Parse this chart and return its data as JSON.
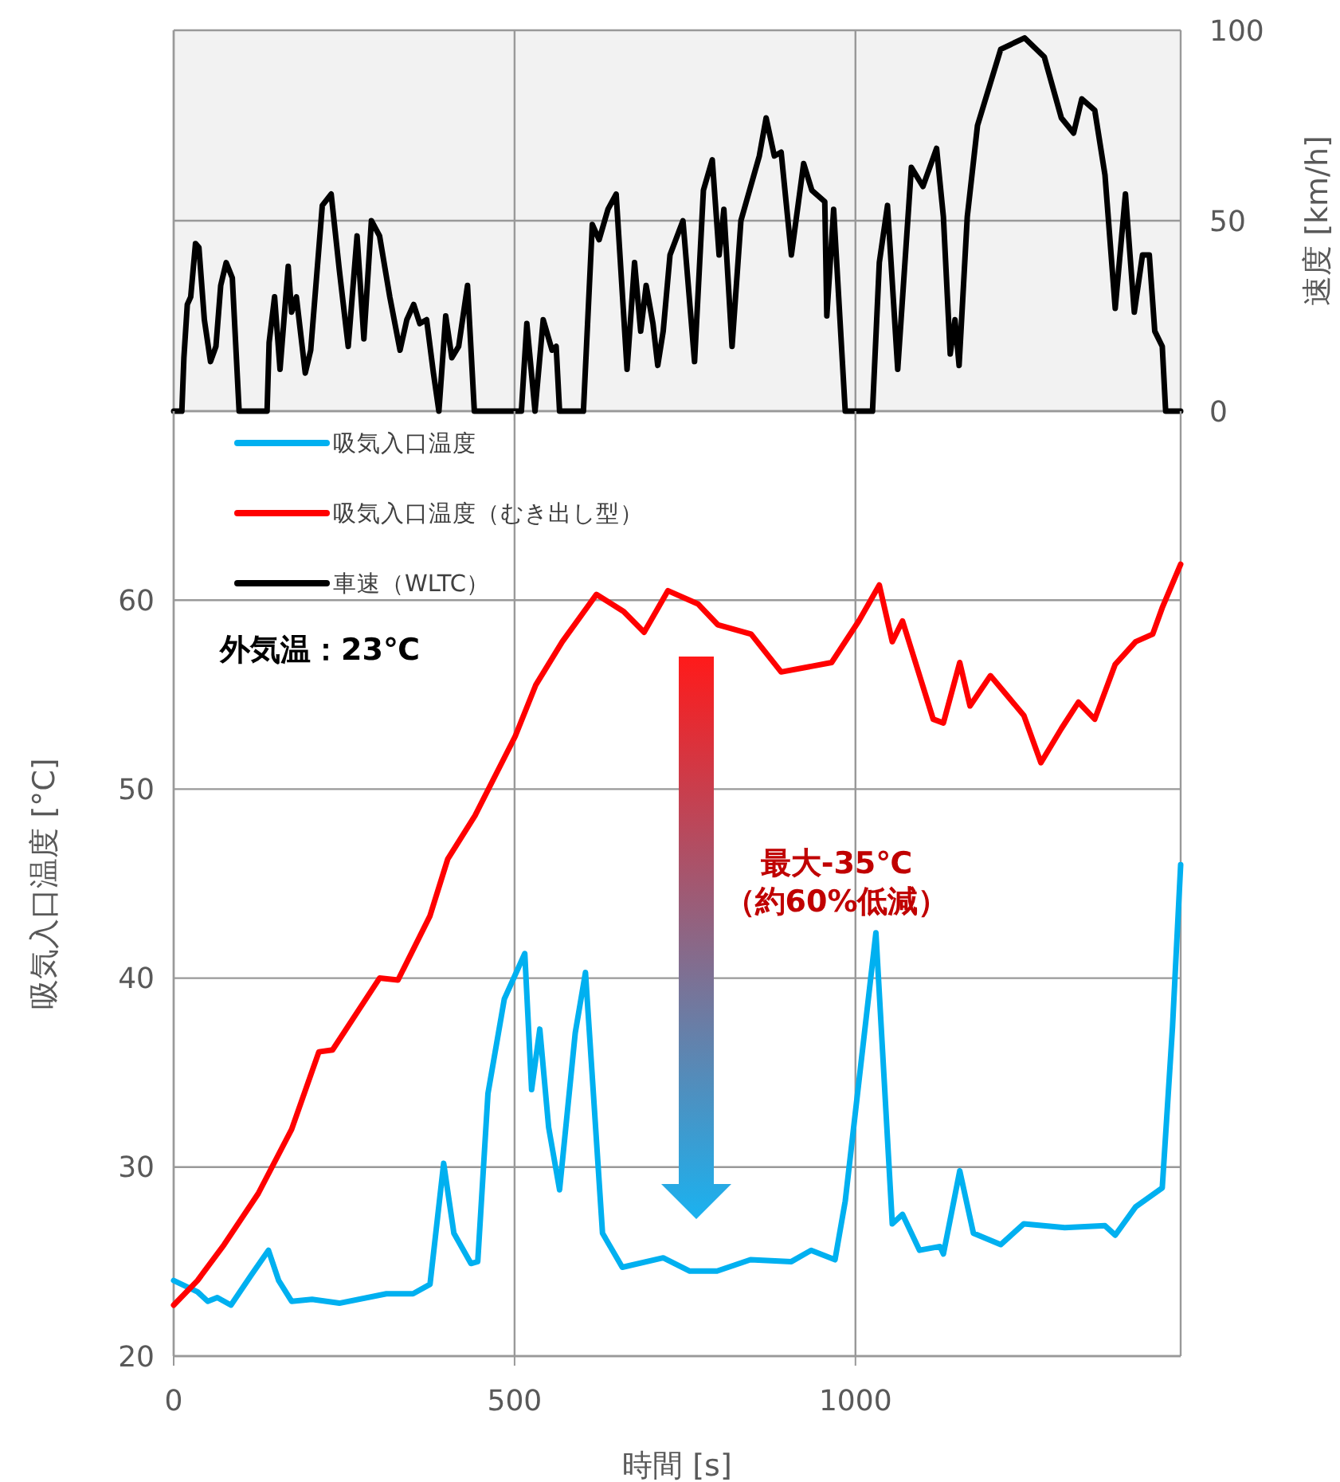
{
  "chart_data": [
    {
      "type": "line",
      "ylabel": "速度 [km/h]",
      "xlim": [
        0,
        1477
      ],
      "xticks": [
        0,
        500,
        1000
      ],
      "ylim": [
        0,
        100
      ],
      "yticks": [
        0,
        50,
        100
      ],
      "grid": true,
      "tick_labels": "y",
      "legend": "bottom left",
      "marker": "none",
      "line_style": "solid",
      "series": [
        {
          "name": "車速（WLTC）",
          "color": "#000000",
          "x": [
            0,
            12,
            15,
            20,
            25,
            32,
            37,
            45,
            54,
            62,
            69,
            77,
            86,
            96,
            137,
            140,
            148,
            156,
            168,
            173,
            180,
            193,
            201,
            218,
            231,
            243,
            256,
            269,
            279,
            290,
            302,
            317,
            332,
            342,
            352,
            361,
            371,
            381,
            389,
            399,
            408,
            418,
            431,
            441,
            510,
            518,
            530,
            542,
            555,
            561,
            566,
            601,
            614,
            624,
            637,
            649,
            665,
            676,
            685,
            693,
            703,
            710,
            718,
            728,
            747,
            764,
            777,
            790,
            800,
            807,
            819,
            832,
            859,
            869,
            881,
            891,
            906,
            924,
            936,
            955,
            958,
            968,
            985,
            1025,
            1035,
            1047,
            1062,
            1082,
            1099,
            1119,
            1129,
            1139,
            1146,
            1152,
            1164,
            1179,
            1213,
            1248,
            1277,
            1302,
            1320,
            1332,
            1351,
            1366,
            1381,
            1396,
            1409,
            1421,
            1431,
            1439,
            1450,
            1455,
            1477
          ],
          "values": [
            0,
            0,
            14,
            28,
            30,
            44,
            43,
            24,
            13,
            17,
            33,
            39,
            35,
            0,
            0,
            18,
            30,
            11,
            38,
            26,
            30,
            10,
            16,
            54,
            57,
            37,
            17,
            46,
            19,
            50,
            46,
            30,
            16,
            24,
            28,
            23,
            24,
            10,
            0,
            25,
            14,
            17,
            33,
            0,
            0,
            23,
            0,
            24,
            16,
            17,
            0,
            0,
            49,
            45,
            53,
            57,
            11,
            39,
            21,
            33,
            23,
            12,
            21,
            41,
            50,
            13,
            58,
            66,
            41,
            53,
            17,
            50,
            67,
            77,
            67,
            68,
            41,
            65,
            58,
            55,
            25,
            53,
            0,
            0,
            39,
            54,
            11,
            64,
            59,
            69,
            51,
            15,
            24,
            12,
            51,
            75,
            95,
            98,
            93,
            77,
            73,
            82,
            79,
            62,
            27,
            57,
            26,
            41,
            41,
            21,
            17,
            0,
            0
          ]
        }
      ]
    },
    {
      "type": "line",
      "xlabel": "時間 [s]",
      "ylabel": "吸気入口温度 [°C]",
      "xlim": [
        0,
        1477
      ],
      "xticks": [
        0,
        500,
        1000
      ],
      "ylim": [
        20,
        70
      ],
      "yticks": [
        20,
        30,
        40,
        50,
        60
      ],
      "grid": true,
      "legend": "top left",
      "marker": "none",
      "line_style": "solid",
      "annotations": [
        "外気温：23℃",
        "最大-35℃",
        "（約60%低減）"
      ],
      "series": [
        {
          "name": "吸気入口温度",
          "color": "#00b0f0",
          "x": [
            0,
            35,
            50,
            64,
            84,
            114,
            139,
            154,
            173,
            203,
            243,
            312,
            351,
            376,
            396,
            411,
            436,
            446,
            461,
            485,
            515,
            525,
            537,
            550,
            566,
            589,
            604,
            629,
            658,
            718,
            757,
            797,
            846,
            906,
            935,
            970,
            985,
            1030,
            1054,
            1069,
            1094,
            1124,
            1129,
            1153,
            1173,
            1213,
            1247,
            1307,
            1366,
            1381,
            1411,
            1450,
            1465,
            1477
          ],
          "values": [
            24,
            23.4,
            22.9,
            23.1,
            22.7,
            24.3,
            25.6,
            24,
            22.9,
            23,
            22.8,
            23.3,
            23.3,
            23.8,
            30.2,
            26.5,
            24.9,
            25,
            33.9,
            38.9,
            41.3,
            34.1,
            37.3,
            32.1,
            28.8,
            37.1,
            40.3,
            26.5,
            24.7,
            25.2,
            24.5,
            24.5,
            25.1,
            25,
            25.6,
            25.1,
            28.2,
            42.4,
            27,
            27.5,
            25.6,
            25.8,
            25.4,
            29.8,
            26.5,
            25.9,
            27,
            26.8,
            26.9,
            26.4,
            27.9,
            28.9,
            37.4,
            46
          ]
        },
        {
          "name": "吸気入口温度（むき出し型）",
          "color": "#ff0000",
          "x": [
            0,
            35,
            74,
            124,
            173,
            213,
            233,
            302,
            329,
            376,
            402,
            442,
            501,
            531,
            570,
            620,
            660,
            690,
            725,
            769,
            798,
            847,
            891,
            965,
            1005,
            1035,
            1054,
            1069,
            1114,
            1129,
            1153,
            1168,
            1198,
            1247,
            1272,
            1302,
            1327,
            1351,
            1381,
            1411,
            1436,
            1450,
            1477
          ],
          "values": [
            22.7,
            24,
            25.9,
            28.6,
            32,
            36.1,
            36.2,
            40,
            39.9,
            43.3,
            46.3,
            48.6,
            52.8,
            55.5,
            57.8,
            60.3,
            59.4,
            58.3,
            60.5,
            59.8,
            58.7,
            58.2,
            56.2,
            56.7,
            58.9,
            60.8,
            57.8,
            58.9,
            53.7,
            53.5,
            56.7,
            54.4,
            56,
            53.9,
            51.4,
            53.2,
            54.6,
            53.7,
            56.6,
            57.8,
            58.2,
            59.6,
            61.9
          ]
        }
      ]
    }
  ]
}
